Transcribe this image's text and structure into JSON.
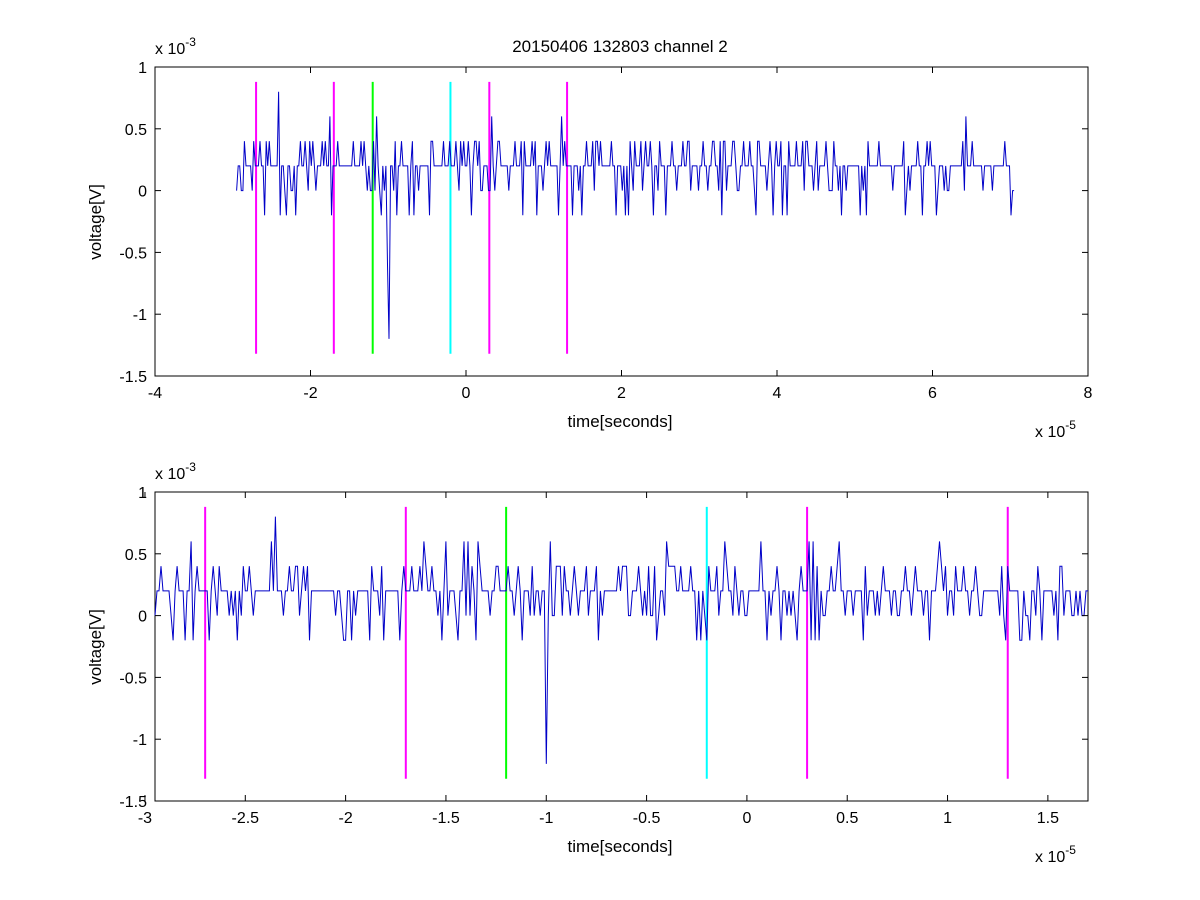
{
  "figure": {
    "title": "20150406 132803 channel 2"
  },
  "chart_data": [
    {
      "type": "line",
      "xlabel": "time[seconds]",
      "ylabel": "voltage[V]",
      "x_multiplier_label": "x 10",
      "x_multiplier_exp": "-5",
      "y_multiplier_label": "x 10",
      "y_multiplier_exp": "-3",
      "xlim": [
        -4,
        8
      ],
      "ylim": [
        -1.5,
        1
      ],
      "xticks": [
        "-4",
        "-2",
        "0",
        "2",
        "4",
        "6",
        "8"
      ],
      "yticks": [
        "-1.5",
        "-1",
        "-0.5",
        "0",
        "0.5",
        "1"
      ],
      "xtick_values": [
        -4,
        -2,
        0,
        2,
        4,
        6,
        8
      ],
      "ytick_values": [
        -1.5,
        -1,
        -0.5,
        0,
        0.5,
        1
      ],
      "signal": {
        "color": "#0000c8",
        "x_start": -2.95,
        "x_end": 7.05,
        "step": 0.02,
        "seed": 11
      },
      "markers": [
        {
          "x": -2.7,
          "color": "#ff00ff",
          "ymin": -1.32,
          "ymax": 0.88
        },
        {
          "x": -1.7,
          "color": "#ff00ff",
          "ymin": -1.32,
          "ymax": 0.88
        },
        {
          "x": -1.2,
          "color": "#00ff00",
          "ymin": -1.32,
          "ymax": 0.88
        },
        {
          "x": -0.2,
          "color": "#00ffff",
          "ymin": -1.32,
          "ymax": 0.88
        },
        {
          "x": 0.3,
          "color": "#ff00ff",
          "ymin": -1.32,
          "ymax": 0.88
        },
        {
          "x": 1.3,
          "color": "#ff00ff",
          "ymin": -1.32,
          "ymax": 0.88
        }
      ],
      "grid": false
    },
    {
      "type": "line",
      "xlabel": "time[seconds]",
      "ylabel": "voltage[V]",
      "x_multiplier_label": "x 10",
      "x_multiplier_exp": "-5",
      "y_multiplier_label": "x 10",
      "y_multiplier_exp": "-3",
      "xlim": [
        -2.95,
        1.7
      ],
      "ylim": [
        -1.5,
        1
      ],
      "xticks": [
        "-3",
        "-2.5",
        "-2",
        "-1.5",
        "-1",
        "-0.5",
        "0",
        "0.5",
        "1",
        "1.5"
      ],
      "yticks": [
        "-1.5",
        "-1",
        "-0.5",
        "0",
        "0.5",
        "1"
      ],
      "xtick_values": [
        -3,
        -2.5,
        -2,
        -1.5,
        -1,
        -0.5,
        0,
        0.5,
        1,
        1.5
      ],
      "ytick_values": [
        -1.5,
        -1,
        -0.5,
        0,
        0.5,
        1
      ],
      "signal": {
        "color": "#0000c8",
        "x_start": -2.95,
        "x_end": 1.7,
        "step": 0.01,
        "seed": 29
      },
      "markers": [
        {
          "x": -2.7,
          "color": "#ff00ff",
          "ymin": -1.32,
          "ymax": 0.88
        },
        {
          "x": -1.7,
          "color": "#ff00ff",
          "ymin": -1.32,
          "ymax": 0.88
        },
        {
          "x": -1.2,
          "color": "#00ff00",
          "ymin": -1.32,
          "ymax": 0.88
        },
        {
          "x": -0.2,
          "color": "#00ffff",
          "ymin": -1.32,
          "ymax": 0.88
        },
        {
          "x": 0.3,
          "color": "#ff00ff",
          "ymin": -1.32,
          "ymax": 0.88
        },
        {
          "x": 1.3,
          "color": "#ff00ff",
          "ymin": -1.32,
          "ymax": 0.88
        }
      ],
      "features": [
        {
          "x": -2.35,
          "y": 0.8
        },
        {
          "x": -2.8,
          "y": -0.2
        },
        {
          "x": -1.0,
          "y": -1.2
        },
        {
          "x": -0.98,
          "y": 0.6
        },
        {
          "x": -0.4,
          "y": 0.6
        },
        {
          "x": 0.25,
          "y": -0.2
        }
      ],
      "grid": false
    }
  ]
}
